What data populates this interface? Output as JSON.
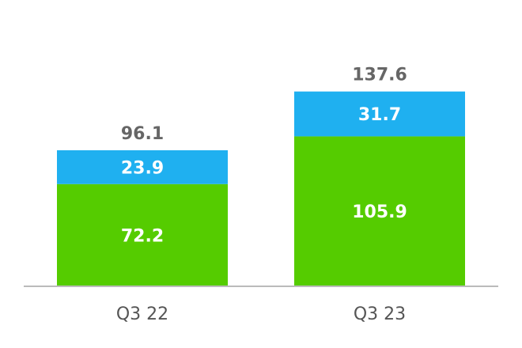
{
  "chart_data": {
    "type": "bar",
    "stacked": true,
    "categories": [
      "Q3 22",
      "Q3 23"
    ],
    "series": [
      {
        "values": [
          72.2,
          105.9
        ],
        "color": "#55cc00"
      },
      {
        "values": [
          23.9,
          31.7
        ],
        "color": "#1fb0f0"
      }
    ],
    "totals": [
      96.1,
      137.6
    ],
    "grid": false,
    "legend": "none",
    "title": "",
    "xlabel": "",
    "ylabel": ""
  },
  "colors": {
    "axis": "#bbbbbb",
    "total_text": "#666666",
    "tick_text": "#555555",
    "segment_text": "#ffffff"
  }
}
